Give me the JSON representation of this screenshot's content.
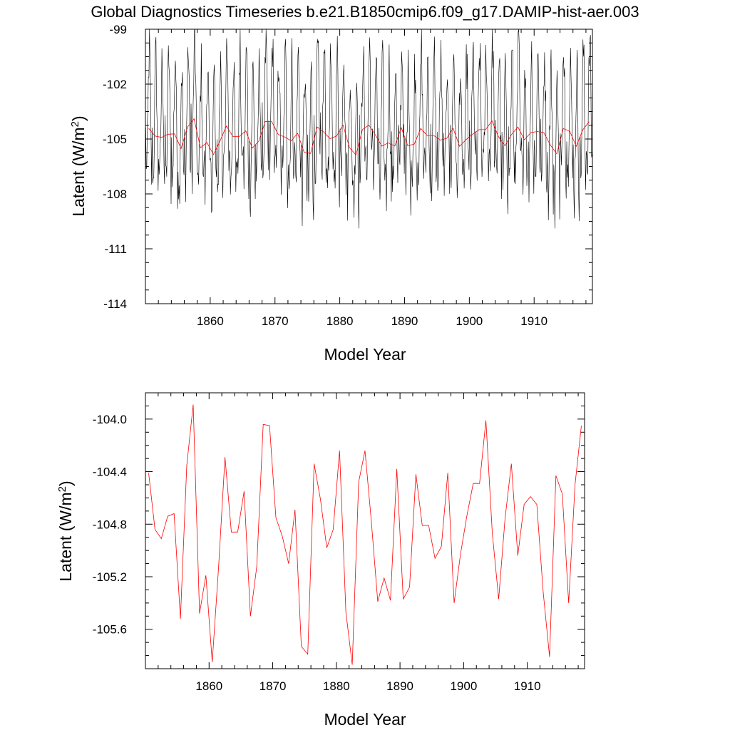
{
  "title": "Global Diagnostics Timeseries b.e21.B1850cmip6.f09_g17.DAMIP-hist-aer.003",
  "colors": {
    "monthly": "#000000",
    "annual": "#ff0000"
  },
  "chart_data": [
    {
      "type": "line",
      "xlabel": "Model Year",
      "ylabel": "Latent (W/m2)",
      "xlim": [
        1850,
        1919
      ],
      "ylim": [
        -114,
        -99
      ],
      "x_ticks": [
        1860,
        1870,
        1880,
        1890,
        1900,
        1910
      ],
      "y_ticks": [
        -99,
        -102,
        -105,
        -108,
        -111,
        -114
      ],
      "y_tick_labels": [
        "-99",
        "-102",
        "-105",
        "-108",
        "-111",
        "-114"
      ],
      "series": [
        {
          "style": "monthly",
          "x_start": 1850.04,
          "x_step": 0.08333,
          "monthly_shape": [
            -0.3,
            -1.0,
            -1.6,
            -0.9,
            0.3,
            1.4,
            2.4,
            2.7,
            2.0,
            0.6,
            -0.8,
            -1.6
          ],
          "note": ""
        },
        {
          "style": "annual",
          "x_start": 1850.5,
          "x_step": 1,
          "values": [
            -104.41,
            -104.84,
            -104.91,
            -104.74,
            -104.72,
            -105.52,
            -104.35,
            -103.89,
            -105.48,
            -105.19,
            -105.85,
            -105.12,
            -104.29,
            -104.86,
            -104.86,
            -104.55,
            -105.5,
            -105.12,
            -104.04,
            -104.05,
            -104.75,
            -104.89,
            -105.1,
            -104.69,
            -105.73,
            -105.79,
            -104.34,
            -104.61,
            -104.98,
            -104.84,
            -104.24,
            -105.47,
            -105.87,
            -104.48,
            -104.24,
            -104.78,
            -105.39,
            -105.21,
            -105.38,
            -104.38,
            -105.37,
            -105.28,
            -104.42,
            -104.81,
            -104.81,
            -105.06,
            -104.97,
            -104.41,
            -105.4,
            -105.03,
            -104.74,
            -104.49,
            -104.49,
            -104.01,
            -104.87,
            -105.37,
            -104.76,
            -104.34,
            -105.04,
            -104.65,
            -104.59,
            -104.65,
            -105.32,
            -105.81,
            -104.43,
            -104.57,
            -105.4,
            -104.5,
            -104.05
          ]
        }
      ]
    },
    {
      "type": "line",
      "xlabel": "Model Year",
      "ylabel": "Latent (W/m2)",
      "xlim": [
        1850,
        1919
      ],
      "ylim": [
        -105.9,
        -103.8
      ],
      "x_ticks": [
        1860,
        1870,
        1880,
        1890,
        1900,
        1910
      ],
      "y_ticks": [
        -104.0,
        -104.4,
        -104.8,
        -105.2,
        -105.6
      ],
      "y_tick_labels": [
        "-104.0",
        "-104.4",
        "-104.8",
        "-105.2",
        "-105.6"
      ],
      "series": [
        {
          "style": "annual",
          "ref": 0
        }
      ]
    }
  ]
}
